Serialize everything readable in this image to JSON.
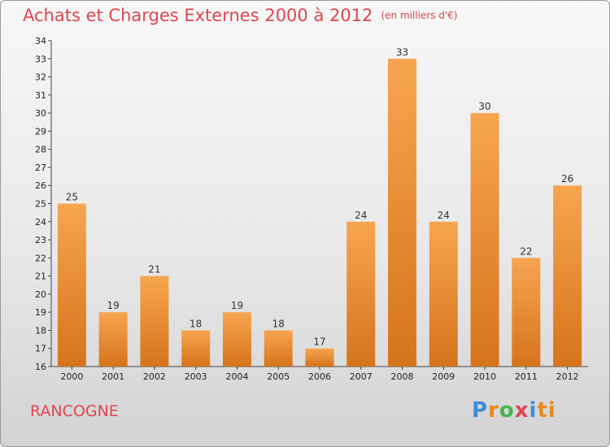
{
  "title": "Achats et Charges Externes 2000 à 2012",
  "unit": "(en milliers d'€)",
  "commune": "RANCOGNE",
  "logo": [
    "P",
    "r",
    "o",
    "x",
    "i",
    "ti"
  ],
  "colors": {
    "bar_top": "#f7a550",
    "bar_bottom": "#d6741c",
    "title": "#e0464f"
  },
  "chart_data": {
    "type": "bar",
    "title": "Achats et Charges Externes 2000 à 2012",
    "categories": [
      "2000",
      "2001",
      "2002",
      "2003",
      "2004",
      "2005",
      "2006",
      "2007",
      "2008",
      "2009",
      "2010",
      "2011",
      "2012"
    ],
    "values": [
      25,
      19,
      21,
      18,
      19,
      18,
      17,
      24,
      33,
      24,
      30,
      22,
      26
    ],
    "ylim": [
      16,
      34
    ],
    "yticks": [
      16,
      17,
      18,
      19,
      20,
      21,
      22,
      23,
      24,
      25,
      26,
      27,
      28,
      29,
      30,
      31,
      32,
      33,
      34
    ],
    "grid": false,
    "legend": "none"
  }
}
